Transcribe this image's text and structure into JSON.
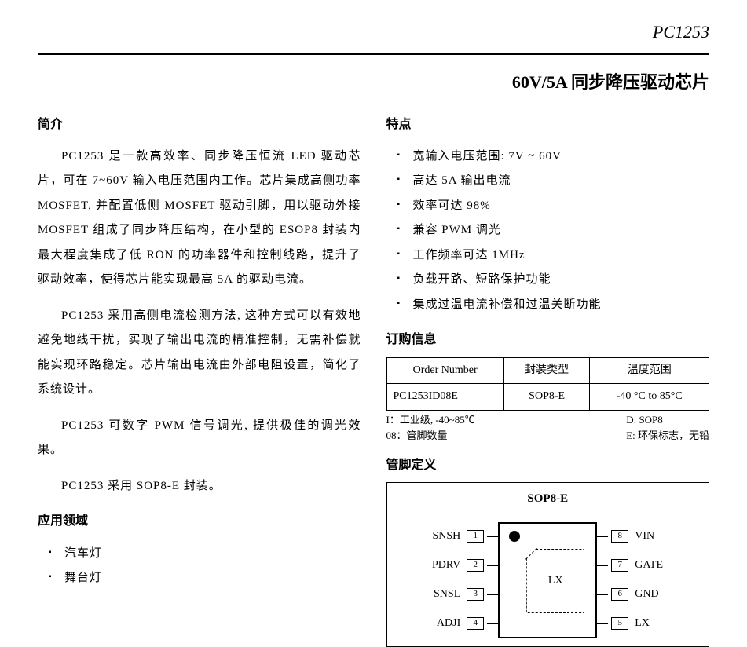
{
  "header": {
    "part_number": "PC1253"
  },
  "title": {
    "text": "60V/5A 同步降压驱动芯片"
  },
  "intro": {
    "heading": "简介",
    "paragraphs": [
      "PC1253 是一款高效率、同步降压恒流 LED 驱动芯片，可在 7~60V 输入电压范围内工作。芯片集成高侧功率 MOSFET, 并配置低侧 MOSFET 驱动引脚，用以驱动外接 MOSFET 组成了同步降压结构，在小型的 ESOP8 封装内最大程度集成了低 RON 的功率器件和控制线路，提升了驱动效率，使得芯片能实现最高 5A 的驱动电流。",
      "PC1253 采用高侧电流检测方法, 这种方式可以有效地避免地线干扰，实现了输出电流的精准控制，无需补偿就能实现环路稳定。芯片输出电流由外部电阻设置，简化了系统设计。",
      "PC1253 可数字 PWM 信号调光, 提供极佳的调光效果。",
      "PC1253 采用 SOP8-E 封装。"
    ]
  },
  "applications": {
    "heading": "应用领域",
    "items": [
      "汽车灯",
      "舞台灯"
    ]
  },
  "features": {
    "heading": "特点",
    "items": [
      "宽输入电压范围: 7V ~ 60V",
      "高达 5A 输出电流",
      "效率可达 98%",
      "兼容 PWM 调光",
      "工作频率可达 1MHz",
      "负载开路、短路保护功能",
      "集成过温电流补偿和过温关断功能"
    ]
  },
  "ordering": {
    "heading": "订购信息",
    "columns": [
      "Order Number",
      "封装类型",
      "温度范围"
    ],
    "row": [
      "PC1253ID08E",
      "SOP8-E",
      "-40 °C to 85°C"
    ],
    "legend_left": [
      "I：工业级, -40~85℃",
      "08：管脚数量"
    ],
    "legend_right": [
      "D: SOP8",
      "E: 环保标志，无铅"
    ]
  },
  "pinout": {
    "heading": "管脚定义",
    "package_label": "SOP8-E",
    "center_label": "LX",
    "left_pins": [
      {
        "name": "SNSH",
        "num": "1"
      },
      {
        "name": "PDRV",
        "num": "2"
      },
      {
        "name": "SNSL",
        "num": "3"
      },
      {
        "name": "ADJI",
        "num": "4"
      }
    ],
    "right_pins": [
      {
        "name": "VIN",
        "num": "8"
      },
      {
        "name": "GATE",
        "num": "7"
      },
      {
        "name": "GND",
        "num": "6"
      },
      {
        "name": "LX",
        "num": "5"
      }
    ]
  }
}
